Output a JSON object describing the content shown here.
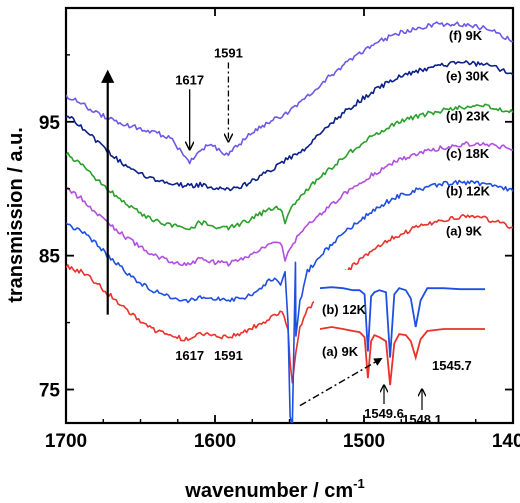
{
  "chart_data": {
    "type": "line",
    "xlabel": "wavenumber  / cm",
    "xlabel_superscript": "-1",
    "ylabel": "transmission / a.u.",
    "xlim": [
      1700,
      1400
    ],
    "ylim": [
      72.5,
      103.5
    ],
    "x_ticks": [
      {
        "value": 1700,
        "label": "1700"
      },
      {
        "value": 1600,
        "label": "1600"
      },
      {
        "value": 1500,
        "label": "1500"
      },
      {
        "value": 1400,
        "label": "1400"
      }
    ],
    "y_ticks": [
      {
        "value": 75,
        "label": "75"
      },
      {
        "value": 85,
        "label": "85"
      },
      {
        "value": 95,
        "label": "95"
      }
    ],
    "series": [
      {
        "name": "(a) 9K",
        "color": "#e8322a",
        "offset": 0,
        "points": [
          [
            1700,
            84.2
          ],
          [
            1690,
            83.8
          ],
          [
            1680,
            83.0
          ],
          [
            1670,
            82.0
          ],
          [
            1660,
            81.0
          ],
          [
            1650,
            80.1
          ],
          [
            1640,
            79.4
          ],
          [
            1630,
            79.0
          ],
          [
            1617,
            78.7
          ],
          [
            1610,
            79.2
          ],
          [
            1600,
            79.0
          ],
          [
            1591,
            78.9
          ],
          [
            1580,
            79.3
          ],
          [
            1570,
            79.9
          ],
          [
            1560,
            80.5
          ],
          [
            1555,
            80.8
          ],
          [
            1551,
            79.5
          ],
          [
            1549.6,
            77.0
          ],
          [
            1548.1,
            75.5
          ],
          [
            1545.7,
            77.8
          ],
          [
            1543,
            79.6
          ],
          [
            1538,
            81.0
          ],
          [
            1525,
            82.5
          ],
          [
            1510,
            84.0
          ],
          [
            1495,
            85.3
          ],
          [
            1480,
            86.4
          ],
          [
            1465,
            87.1
          ],
          [
            1450,
            87.6
          ],
          [
            1435,
            87.9
          ],
          [
            1420,
            87.8
          ],
          [
            1410,
            87.5
          ],
          [
            1400,
            87.1
          ]
        ]
      },
      {
        "name": "(b) 12K",
        "color": "#1f4fe0",
        "offset": 0,
        "points": [
          [
            1700,
            87.3
          ],
          [
            1690,
            86.9
          ],
          [
            1680,
            85.9
          ],
          [
            1670,
            84.8
          ],
          [
            1660,
            83.8
          ],
          [
            1650,
            82.9
          ],
          [
            1640,
            82.3
          ],
          [
            1630,
            81.9
          ],
          [
            1617,
            81.6
          ],
          [
            1610,
            82.0
          ],
          [
            1600,
            81.8
          ],
          [
            1591,
            81.6
          ],
          [
            1580,
            81.9
          ],
          [
            1570,
            82.4
          ],
          [
            1565,
            83.0
          ],
          [
            1560,
            83.3
          ],
          [
            1556,
            82.8
          ],
          [
            1553,
            83.8
          ],
          [
            1551,
            80.0
          ],
          [
            1549.6,
            73.0
          ],
          [
            1548.1,
            72.3
          ],
          [
            1546,
            84.5
          ],
          [
            1545.7,
            79.0
          ],
          [
            1543,
            81.5
          ],
          [
            1538,
            83.8
          ],
          [
            1525,
            85.5
          ],
          [
            1510,
            87.0
          ],
          [
            1495,
            88.3
          ],
          [
            1480,
            89.3
          ],
          [
            1465,
            89.9
          ],
          [
            1450,
            90.3
          ],
          [
            1435,
            90.5
          ],
          [
            1420,
            90.4
          ],
          [
            1410,
            90.2
          ],
          [
            1400,
            89.8
          ]
        ]
      },
      {
        "name": "(c) 18K",
        "color": "#b14fe0",
        "offset": 0,
        "points": [
          [
            1700,
            90.0
          ],
          [
            1690,
            89.3
          ],
          [
            1680,
            88.2
          ],
          [
            1670,
            87.3
          ],
          [
            1660,
            86.4
          ],
          [
            1650,
            85.6
          ],
          [
            1640,
            85.0
          ],
          [
            1630,
            84.6
          ],
          [
            1617,
            84.3
          ],
          [
            1610,
            84.8
          ],
          [
            1600,
            84.5
          ],
          [
            1591,
            84.4
          ],
          [
            1580,
            84.8
          ],
          [
            1570,
            85.4
          ],
          [
            1560,
            86.0
          ],
          [
            1555,
            85.7
          ],
          [
            1553,
            84.6
          ],
          [
            1550,
            85.6
          ],
          [
            1540,
            87.0
          ],
          [
            1525,
            88.5
          ],
          [
            1510,
            89.9
          ],
          [
            1495,
            91.0
          ],
          [
            1480,
            92.0
          ],
          [
            1465,
            92.6
          ],
          [
            1450,
            93.0
          ],
          [
            1435,
            93.3
          ],
          [
            1420,
            93.4
          ],
          [
            1410,
            93.2
          ],
          [
            1400,
            92.9
          ]
        ]
      },
      {
        "name": "(d) 23K",
        "color": "#2aa02a",
        "offset": 0,
        "points": [
          [
            1700,
            92.6
          ],
          [
            1690,
            91.9
          ],
          [
            1680,
            90.8
          ],
          [
            1670,
            89.8
          ],
          [
            1660,
            88.9
          ],
          [
            1650,
            88.2
          ],
          [
            1640,
            87.6
          ],
          [
            1630,
            87.3
          ],
          [
            1617,
            87.0
          ],
          [
            1610,
            87.5
          ],
          [
            1600,
            87.2
          ],
          [
            1591,
            87.1
          ],
          [
            1580,
            87.5
          ],
          [
            1570,
            88.1
          ],
          [
            1560,
            88.6
          ],
          [
            1555,
            88.3
          ],
          [
            1553,
            87.4
          ],
          [
            1550,
            88.4
          ],
          [
            1540,
            89.8
          ],
          [
            1525,
            91.3
          ],
          [
            1510,
            92.7
          ],
          [
            1495,
            93.9
          ],
          [
            1480,
            94.8
          ],
          [
            1465,
            95.4
          ],
          [
            1450,
            95.8
          ],
          [
            1435,
            96.1
          ],
          [
            1420,
            96.2
          ],
          [
            1410,
            96.0
          ],
          [
            1400,
            95.7
          ]
        ]
      },
      {
        "name": "(e) 30K",
        "color": "#0b1f88",
        "offset": 0,
        "points": [
          [
            1700,
            95.5
          ],
          [
            1690,
            94.7
          ],
          [
            1680,
            93.6
          ],
          [
            1670,
            92.6
          ],
          [
            1660,
            91.7
          ],
          [
            1650,
            91.1
          ],
          [
            1640,
            90.6
          ],
          [
            1630,
            90.4
          ],
          [
            1617,
            90.2
          ],
          [
            1610,
            90.3
          ],
          [
            1600,
            90.0
          ],
          [
            1591,
            89.9
          ],
          [
            1580,
            90.3
          ],
          [
            1570,
            90.9
          ],
          [
            1560,
            91.6
          ],
          [
            1550,
            92.3
          ],
          [
            1540,
            93.0
          ],
          [
            1525,
            94.6
          ],
          [
            1510,
            96.0
          ],
          [
            1495,
            97.2
          ],
          [
            1480,
            98.2
          ],
          [
            1465,
            98.8
          ],
          [
            1450,
            99.2
          ],
          [
            1435,
            99.4
          ],
          [
            1420,
            99.3
          ],
          [
            1410,
            99.0
          ],
          [
            1400,
            98.5
          ]
        ]
      },
      {
        "name": "(f) 9K",
        "color": "#6a5ae8",
        "offset": 0,
        "points": [
          [
            1700,
            97.0
          ],
          [
            1690,
            96.4
          ],
          [
            1680,
            95.7
          ],
          [
            1670,
            95.2
          ],
          [
            1660,
            94.8
          ],
          [
            1650,
            94.5
          ],
          [
            1640,
            94.2
          ],
          [
            1630,
            93.8
          ],
          [
            1620,
            92.4
          ],
          [
            1617,
            92.0
          ],
          [
            1612,
            92.6
          ],
          [
            1605,
            93.3
          ],
          [
            1600,
            93.1
          ],
          [
            1595,
            92.7
          ],
          [
            1591,
            92.6
          ],
          [
            1585,
            93.2
          ],
          [
            1575,
            94.2
          ],
          [
            1560,
            95.2
          ],
          [
            1550,
            95.8
          ],
          [
            1540,
            96.7
          ],
          [
            1525,
            98.2
          ],
          [
            1510,
            99.6
          ],
          [
            1495,
            100.7
          ],
          [
            1480,
            101.5
          ],
          [
            1465,
            102.0
          ],
          [
            1450,
            102.3
          ],
          [
            1435,
            102.3
          ],
          [
            1420,
            102.0
          ],
          [
            1410,
            101.6
          ],
          [
            1400,
            101.0
          ]
        ]
      }
    ],
    "series_labels": [
      {
        "text": "(a) 9K",
        "x": 1445,
        "y": 86.5
      },
      {
        "text": "(b) 12K",
        "x": 1445,
        "y": 89.5
      },
      {
        "text": "(c) 18K",
        "x": 1445,
        "y": 92.3
      },
      {
        "text": "(d) 23K",
        "x": 1445,
        "y": 95.1
      },
      {
        "text": "(e) 30K",
        "x": 1445,
        "y": 98.1
      },
      {
        "text": "(f) 9K",
        "x": 1443,
        "y": 101.1
      }
    ],
    "annotations": {
      "peak_labels_bottom": [
        {
          "text": "1617",
          "x": 1617,
          "y": 77.2
        },
        {
          "text": "1591",
          "x": 1591,
          "y": 77.2
        }
      ],
      "peak_labels_top": [
        {
          "text": "1617",
          "x": 1617,
          "y": 97.8,
          "arrow_to": 93.0
        },
        {
          "text": "1591",
          "x": 1591,
          "y": 99.8,
          "arrow_to": 93.6
        }
      ],
      "temperature_arrow": {
        "x": 1672,
        "y_from": 80.6,
        "y_to": 98.4
      },
      "inset_arrow": {
        "x_from": 1543,
        "y_from": 73.8,
        "x_to": 1490,
        "y_to": 77.2
      }
    },
    "inset": {
      "series": [
        {
          "name": "(b) 12K",
          "color": "#1f4fe0",
          "points": [
            [
              0,
              0.1
            ],
            [
              0.07,
              0.09
            ],
            [
              0.14,
              0.1
            ],
            [
              0.2,
              0.12
            ],
            [
              0.24,
              0.12
            ],
            [
              0.27,
              0.16
            ],
            [
              0.29,
              0.72
            ],
            [
              0.31,
              0.18
            ],
            [
              0.33,
              0.14
            ],
            [
              0.36,
              0.12
            ],
            [
              0.4,
              0.14
            ],
            [
              0.425,
              0.78
            ],
            [
              0.45,
              0.16
            ],
            [
              0.48,
              0.1
            ],
            [
              0.52,
              0.12
            ],
            [
              0.55,
              0.2
            ],
            [
              0.58,
              0.48
            ],
            [
              0.61,
              0.22
            ],
            [
              0.65,
              0.1
            ],
            [
              0.75,
              0.1
            ],
            [
              0.85,
              0.11
            ],
            [
              1.0,
              0.11
            ]
          ]
        },
        {
          "name": "(a) 9K",
          "color": "#e8322a",
          "points": [
            [
              0,
              0.5
            ],
            [
              0.07,
              0.48
            ],
            [
              0.14,
              0.5
            ],
            [
              0.2,
              0.52
            ],
            [
              0.24,
              0.53
            ],
            [
              0.27,
              0.58
            ],
            [
              0.29,
              0.98
            ],
            [
              0.31,
              0.62
            ],
            [
              0.33,
              0.56
            ],
            [
              0.36,
              0.58
            ],
            [
              0.4,
              0.62
            ],
            [
              0.425,
              1.05
            ],
            [
              0.45,
              0.64
            ],
            [
              0.48,
              0.55
            ],
            [
              0.52,
              0.56
            ],
            [
              0.55,
              0.62
            ],
            [
              0.58,
              0.78
            ],
            [
              0.61,
              0.6
            ],
            [
              0.65,
              0.52
            ],
            [
              0.75,
              0.5
            ],
            [
              0.85,
              0.5
            ],
            [
              1.0,
              0.5
            ]
          ]
        }
      ],
      "labels": [
        {
          "text": "(b) 12K"
        },
        {
          "text": "(a) 9K"
        },
        {
          "text": "1549.6"
        },
        {
          "text": "1548.1"
        },
        {
          "text": "1545.7"
        }
      ]
    }
  }
}
